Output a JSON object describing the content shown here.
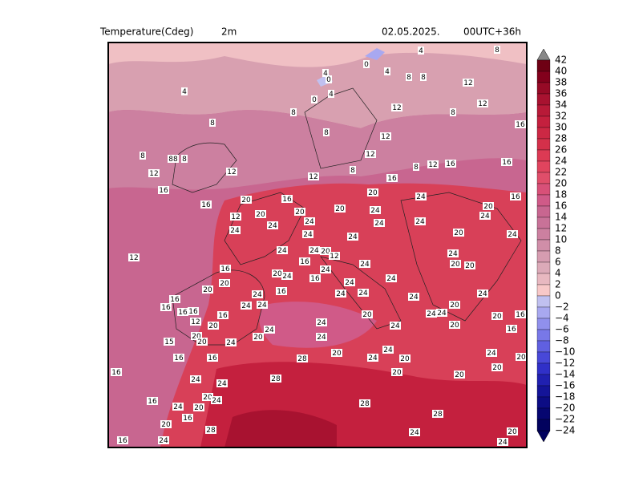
{
  "header": {
    "variable": "Temperature(Cdeg)",
    "level": "2m",
    "date": "02.05.2025.",
    "run": "00UTC+36h"
  },
  "colorbar": {
    "labels": [
      "42",
      "40",
      "38",
      "36",
      "34",
      "32",
      "30",
      "28",
      "26",
      "24",
      "22",
      "20",
      "18",
      "16",
      "14",
      "12",
      "10",
      "8",
      "6",
      "4",
      "2",
      "0",
      "−2",
      "−4",
      "−6",
      "−8",
      "−10",
      "−12",
      "−14",
      "−16",
      "−18",
      "−20",
      "−22",
      "−24"
    ],
    "colors": [
      "#6e0014",
      "#82001c",
      "#960a26",
      "#a81230",
      "#b81a38",
      "#c4203e",
      "#cc2844",
      "#d4304a",
      "#dc3a54",
      "#e0445e",
      "#e04e6a",
      "#d85078",
      "#d05a88",
      "#c86690",
      "#c87298",
      "#cc80a0",
      "#d08ea8",
      "#d69cb0",
      "#dcaab8",
      "#e8b8c0",
      "#f8c8c8",
      "#c0c0f0",
      "#a8a8f0",
      "#9090ec",
      "#7878e8",
      "#6060e0",
      "#4848d8",
      "#3030c8",
      "#2020b0",
      "#141498",
      "#0c0c84",
      "#060670",
      "#02025e"
    ]
  },
  "map": {
    "labels": [
      "4",
      "8",
      "4",
      "0",
      "4",
      "8",
      "8",
      "12",
      "4",
      "0",
      "4",
      "0",
      "8",
      "12",
      "12",
      "8",
      "16",
      "8",
      "8",
      "12",
      "8",
      "88",
      "8",
      "12",
      "12",
      "12",
      "8",
      "12",
      "8",
      "12",
      "16",
      "16",
      "16",
      "16",
      "20",
      "24",
      "16",
      "16",
      "20",
      "16",
      "24",
      "20",
      "24",
      "12",
      "20",
      "20",
      "20",
      "24",
      "24",
      "24",
      "24",
      "24",
      "24",
      "24",
      "20",
      "24",
      "12",
      "24",
      "24",
      "20",
      "12",
      "16",
      "24",
      "24",
      "20",
      "20",
      "16",
      "24",
      "20",
      "24",
      "20",
      "16",
      "24",
      "24",
      "20",
      "16",
      "24",
      "16",
      "24",
      "24",
      "24",
      "24",
      "24",
      "24",
      "16",
      "20",
      "16",
      "16",
      "16",
      "24",
      "24",
      "20",
      "20",
      "16",
      "12",
      "20",
      "24",
      "24",
      "20",
      "24",
      "20",
      "16",
      "15",
      "20",
      "20",
      "24",
      "24",
      "24",
      "20",
      "28",
      "16",
      "16",
      "24",
      "20",
      "24",
      "20",
      "16",
      "20",
      "20",
      "20",
      "24",
      "28",
      "24",
      "16",
      "20",
      "24",
      "24",
      "20",
      "28",
      "28",
      "20",
      "16",
      "28",
      "24",
      "16",
      "24",
      "20",
      "24"
    ]
  }
}
